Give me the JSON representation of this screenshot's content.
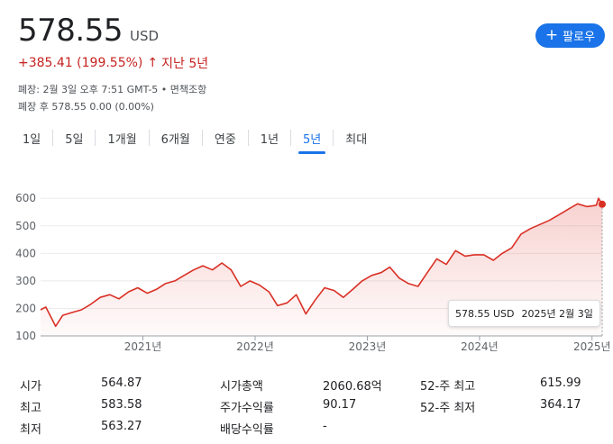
{
  "quote": {
    "price": "578.55",
    "currency": "USD",
    "change": "+385.41 (199.55%)",
    "change_arrow": "↑",
    "change_period": "지난 5년",
    "meta_line1": "폐장: 2월 3일 오후 7:51 GMT-5 • 면책조항",
    "meta_line2": "폐장 후 578.55 0.00 (0.00%)"
  },
  "follow_button": {
    "icon": "plus-icon",
    "label": "팔로우"
  },
  "ranges": [
    "1일",
    "5일",
    "1개월",
    "6개월",
    "연중",
    "1년",
    "5년",
    "최대"
  ],
  "active_range": "5년",
  "tooltip": {
    "price": "578.55 USD",
    "date": "2025년 2월 3일"
  },
  "stats": [
    {
      "l1": "시가",
      "v1": "564.87",
      "l2": "시가총액",
      "v2": "2060.68억",
      "l3": "52-주 최고",
      "v3": "615.99"
    },
    {
      "l1": "최고",
      "v1": "583.58",
      "l2": "주가수익률",
      "v2": "90.17",
      "l3": "52-주 최저",
      "v3": "364.17"
    },
    {
      "l1": "최저",
      "v1": "563.27",
      "l2": "배당수익률",
      "v2": "-",
      "l3": "",
      "v3": ""
    }
  ],
  "colors": {
    "line": "#d93025",
    "accent": "#1a73e8"
  },
  "chart_data": {
    "type": "area",
    "yticks": [
      100,
      200,
      300,
      400,
      500,
      600
    ],
    "ylim": [
      100,
      640
    ],
    "xticks": [
      "2021년",
      "2022년",
      "2023년",
      "2024년",
      "2025년"
    ],
    "grid": true,
    "series": [
      {
        "x": [
          "2020-02-03",
          "2020-02-20",
          "2020-03-23",
          "2020-04-15",
          "2020-05-15",
          "2020-06-15",
          "2020-07-15",
          "2020-08-15",
          "2020-09-15",
          "2020-10-15",
          "2020-11-15",
          "2020-12-15",
          "2021-01-15",
          "2021-02-15",
          "2021-03-15",
          "2021-04-15",
          "2021-05-15",
          "2021-06-15",
          "2021-07-15",
          "2021-08-15",
          "2021-09-15",
          "2021-10-15",
          "2021-11-15",
          "2021-12-15",
          "2022-01-15",
          "2022-02-15",
          "2022-03-15",
          "2022-04-15",
          "2022-05-15",
          "2022-06-15",
          "2022-07-15",
          "2022-08-15",
          "2022-09-15",
          "2022-10-15",
          "2022-11-15",
          "2022-12-15",
          "2023-01-15",
          "2023-02-15",
          "2023-03-15",
          "2023-04-15",
          "2023-05-15",
          "2023-06-15",
          "2023-07-15",
          "2023-08-15",
          "2023-09-15",
          "2023-10-15",
          "2023-11-15",
          "2023-12-15",
          "2024-01-15",
          "2024-02-15",
          "2024-03-15",
          "2024-04-15",
          "2024-05-15",
          "2024-06-15",
          "2024-07-15",
          "2024-08-15",
          "2024-09-15",
          "2024-10-15",
          "2024-11-15",
          "2024-12-15",
          "2025-01-15",
          "2025-01-22",
          "2025-02-03"
        ],
        "y": [
          195,
          205,
          135,
          175,
          185,
          195,
          215,
          240,
          250,
          235,
          260,
          275,
          255,
          270,
          290,
          300,
          320,
          340,
          355,
          340,
          365,
          340,
          280,
          300,
          285,
          260,
          210,
          220,
          250,
          180,
          230,
          275,
          265,
          240,
          270,
          300,
          320,
          330,
          350,
          310,
          290,
          280,
          330,
          380,
          360,
          410,
          390,
          395,
          395,
          375,
          400,
          420,
          470,
          490,
          505,
          520,
          540,
          560,
          580,
          570,
          575,
          600,
          578.55
        ]
      }
    ]
  }
}
